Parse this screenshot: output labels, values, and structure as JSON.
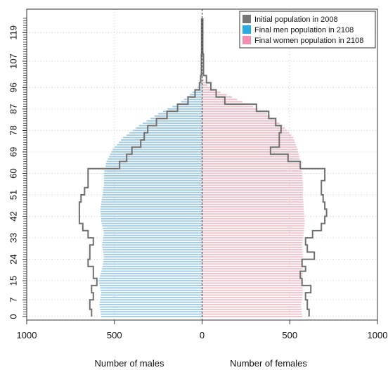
{
  "chart_data": {
    "type": "bar",
    "orientation": "horizontal",
    "legend_position": "top-right",
    "grid": true,
    "xlim": [
      -1000,
      1000
    ],
    "x_ticks": [
      -1000,
      -500,
      0,
      500,
      1000
    ],
    "x_tick_labels": [
      "1000",
      "500",
      "0",
      "500",
      "1000"
    ],
    "ylim": [
      0,
      125
    ],
    "y_ticks": [
      0,
      7,
      15,
      24,
      33,
      42,
      51,
      60,
      69,
      78,
      87,
      96,
      107,
      119
    ],
    "y_tick_labels": [
      "0",
      "7",
      "15",
      "24",
      "33",
      "42",
      "51",
      "60",
      "69",
      "78",
      "87",
      "96",
      "107",
      "119"
    ],
    "x_labels": {
      "males": "Number of males",
      "females": "Number of females"
    },
    "legend": [
      {
        "label": "Initial population in 2008",
        "color": "#777777"
      },
      {
        "label": "Final men population in 2108",
        "color": "#29abe2"
      },
      {
        "label": "Final women population in 2108",
        "color": "#f48fb1"
      }
    ],
    "colors": {
      "men_bars": "#9fcbe6",
      "women_bars": "#efc1c9",
      "initial_outline": "#6f6f6f",
      "grid": "#cccccc"
    },
    "series": [
      {
        "name": "Final men population in 2108",
        "side": "left",
        "age_values": [
          0,
          5,
          10,
          15,
          20,
          25,
          30,
          35,
          40,
          45,
          50,
          55,
          60,
          65,
          70,
          75,
          80,
          85,
          88,
          90,
          93,
          95,
          97,
          99,
          101
        ],
        "values": [
          575,
          585,
          575,
          590,
          570,
          560,
          570,
          560,
          575,
          580,
          570,
          560,
          560,
          545,
          510,
          450,
          360,
          250,
          170,
          120,
          70,
          35,
          15,
          5,
          0
        ]
      },
      {
        "name": "Final women population in 2108",
        "side": "right",
        "age_values": [
          0,
          5,
          10,
          15,
          20,
          25,
          30,
          35,
          40,
          45,
          50,
          55,
          60,
          65,
          70,
          75,
          80,
          85,
          88,
          90,
          93,
          95,
          97,
          99,
          101
        ],
        "values": [
          570,
          565,
          575,
          570,
          575,
          575,
          570,
          580,
          585,
          580,
          575,
          575,
          570,
          560,
          545,
          520,
          460,
          370,
          290,
          230,
          140,
          70,
          30,
          10,
          0
        ]
      },
      {
        "name": "Initial population in 2008",
        "side": "both",
        "age_values": [
          0,
          3,
          7,
          10,
          13,
          16,
          19,
          21,
          24,
          27,
          30,
          33,
          36,
          39,
          42,
          45,
          48,
          51,
          54,
          57,
          60,
          62,
          65,
          68,
          71,
          74,
          77,
          80,
          83,
          86,
          89,
          92,
          95,
          98,
          101,
          110,
          125
        ],
        "males": [
          630,
          640,
          620,
          630,
          600,
          620,
          620,
          650,
          640,
          640,
          620,
          650,
          680,
          700,
          700,
          700,
          690,
          670,
          650,
          650,
          650,
          470,
          430,
          400,
          350,
          330,
          310,
          260,
          200,
          140,
          80,
          40,
          15,
          8,
          4,
          3,
          2
        ],
        "females": [
          610,
          600,
          590,
          620,
          570,
          560,
          590,
          570,
          640,
          600,
          590,
          630,
          680,
          700,
          710,
          700,
          690,
          680,
          680,
          700,
          700,
          560,
          490,
          390,
          440,
          440,
          450,
          420,
          380,
          310,
          130,
          80,
          50,
          25,
          8,
          4,
          2
        ]
      }
    ]
  }
}
